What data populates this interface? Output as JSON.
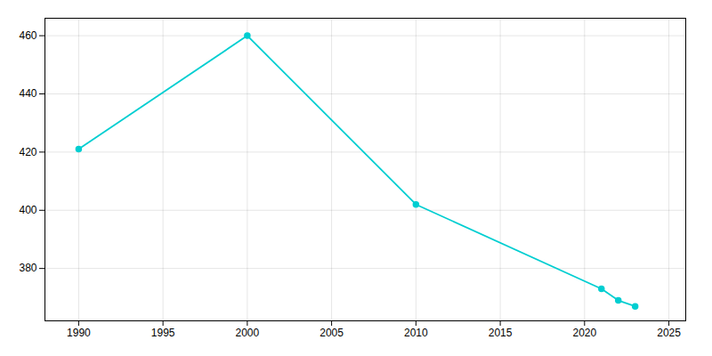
{
  "chart_data": {
    "type": "line",
    "x": [
      1990,
      2000,
      2010,
      2021,
      2022,
      2023
    ],
    "values": [
      421,
      460,
      402,
      373,
      369,
      367
    ],
    "color": "#00CED1",
    "marker": "circle",
    "xlim": [
      1988,
      2026
    ],
    "xticks": [
      1990,
      1995,
      2000,
      2005,
      2010,
      2015,
      2020,
      2025
    ],
    "ylim": [
      362,
      466
    ],
    "yticks": [
      380,
      400,
      420,
      440,
      460
    ],
    "grid": true
  }
}
